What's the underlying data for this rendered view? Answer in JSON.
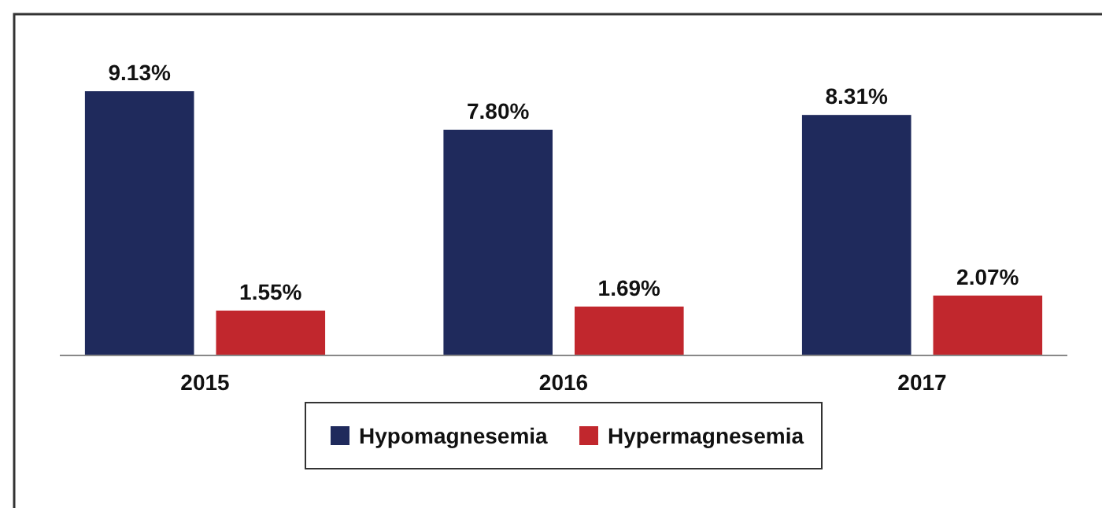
{
  "chart_data": {
    "type": "bar",
    "categories": [
      "2015",
      "2016",
      "2017"
    ],
    "series": [
      {
        "name": "Hypomagnesemia",
        "color": "#1f2a5c",
        "values": [
          9.13,
          7.8,
          8.31
        ],
        "value_labels": [
          "9.13%",
          "7.80%",
          "8.31%"
        ]
      },
      {
        "name": "Hypermagnesemia",
        "color": "#c1272d",
        "values": [
          1.55,
          1.69,
          2.07
        ],
        "value_labels": [
          "1.55%",
          "1.69%",
          "2.07%"
        ]
      }
    ],
    "legend": "bottom"
  }
}
